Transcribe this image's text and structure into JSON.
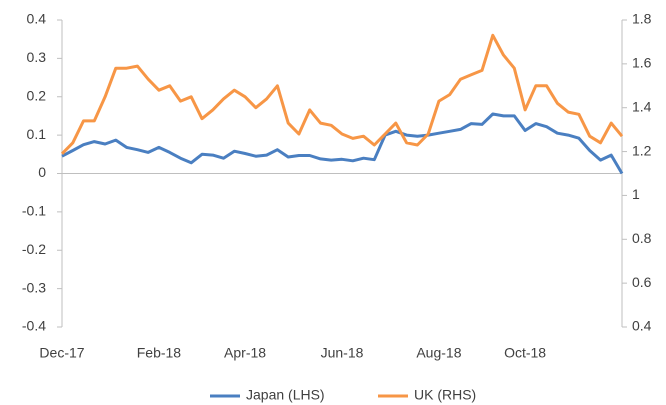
{
  "chart_data": {
    "type": "line",
    "categories": [
      "Dec-17",
      null,
      null,
      null,
      null,
      null,
      null,
      null,
      null,
      "Feb-18",
      null,
      null,
      null,
      null,
      null,
      null,
      null,
      "Apr-18",
      null,
      null,
      null,
      null,
      null,
      null,
      null,
      null,
      "Jun-18",
      null,
      null,
      null,
      null,
      null,
      null,
      null,
      null,
      "Aug-18",
      null,
      null,
      null,
      null,
      null,
      null,
      null,
      "Oct-18",
      null,
      null,
      null,
      null,
      null,
      null,
      null,
      null,
      null
    ],
    "series": [
      {
        "name": "Japan (LHS)",
        "color": "#4a7fc1",
        "axis": "y",
        "values": [
          0.045,
          0.06,
          0.075,
          0.083,
          0.077,
          0.087,
          0.068,
          0.062,
          0.055,
          0.068,
          0.055,
          0.04,
          0.028,
          0.05,
          0.048,
          0.04,
          0.058,
          0.052,
          0.045,
          0.048,
          0.062,
          0.043,
          0.047,
          0.047,
          0.038,
          0.035,
          0.037,
          0.033,
          0.04,
          0.036,
          0.1,
          0.11,
          0.1,
          0.097,
          0.1,
          0.105,
          0.11,
          0.115,
          0.13,
          0.128,
          0.155,
          0.15,
          0.15,
          0.112,
          0.13,
          0.122,
          0.105,
          0.1,
          0.092,
          0.06,
          0.035,
          0.048,
          0.0
        ]
      },
      {
        "name": "UK (RHS)",
        "color": "#f79646",
        "axis": "y2",
        "values": [
          1.19,
          1.24,
          1.34,
          1.34,
          1.45,
          1.58,
          1.58,
          1.59,
          1.53,
          1.48,
          1.5,
          1.43,
          1.45,
          1.35,
          1.39,
          1.44,
          1.48,
          1.45,
          1.4,
          1.44,
          1.5,
          1.33,
          1.28,
          1.39,
          1.33,
          1.32,
          1.28,
          1.26,
          1.27,
          1.23,
          1.28,
          1.33,
          1.24,
          1.23,
          1.28,
          1.43,
          1.46,
          1.53,
          1.55,
          1.57,
          1.73,
          1.64,
          1.58,
          1.39,
          1.5,
          1.5,
          1.42,
          1.38,
          1.37,
          1.27,
          1.24,
          1.33,
          1.27
        ]
      }
    ],
    "ylim": [
      -0.4,
      0.4
    ],
    "yticks": [
      0.4,
      0.3,
      0.2,
      0.1,
      0,
      -0.1,
      -0.2,
      -0.3,
      -0.4
    ],
    "y2lim": [
      0.4,
      1.8
    ],
    "y2ticks": [
      1.8,
      1.6,
      1.4,
      1.2,
      1,
      0.8,
      0.6,
      0.4
    ],
    "legend": "bottom"
  }
}
